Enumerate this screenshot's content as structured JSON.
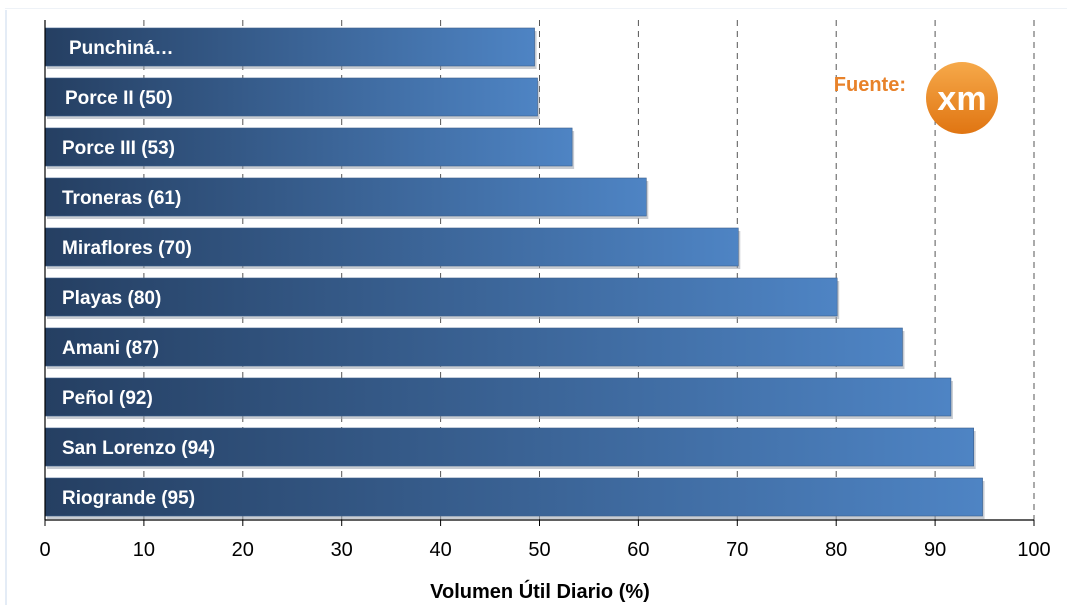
{
  "chart_data": {
    "type": "bar",
    "orientation": "horizontal",
    "categories": [
      "Punchiná…",
      "Porce II (50)",
      "Porce III (53)",
      "Troneras (61)",
      "Miraflores (70)",
      "Playas (80)",
      "Amani (87)",
      "Peñol (92)",
      "San Lorenzo (94)",
      "Riogrande (95)"
    ],
    "values": [
      49.5,
      49.8,
      53.3,
      60.8,
      70.1,
      80.1,
      86.7,
      91.6,
      93.9,
      94.8
    ],
    "xlabel": "Volumen Útil Diario (%)",
    "ylabel": "",
    "xlim": [
      0,
      100
    ],
    "xticks": [
      "0",
      "10",
      "20",
      "30",
      "40",
      "50",
      "60",
      "70",
      "80",
      "90",
      "100"
    ],
    "grid": "vertical dashed",
    "bar_gradient": [
      "#253f62",
      "#4e84c4"
    ]
  },
  "source": {
    "label": "Fuente:",
    "logo_text": "xm",
    "label_color": "#e8822a",
    "logo_color": "#ef8a1f"
  }
}
